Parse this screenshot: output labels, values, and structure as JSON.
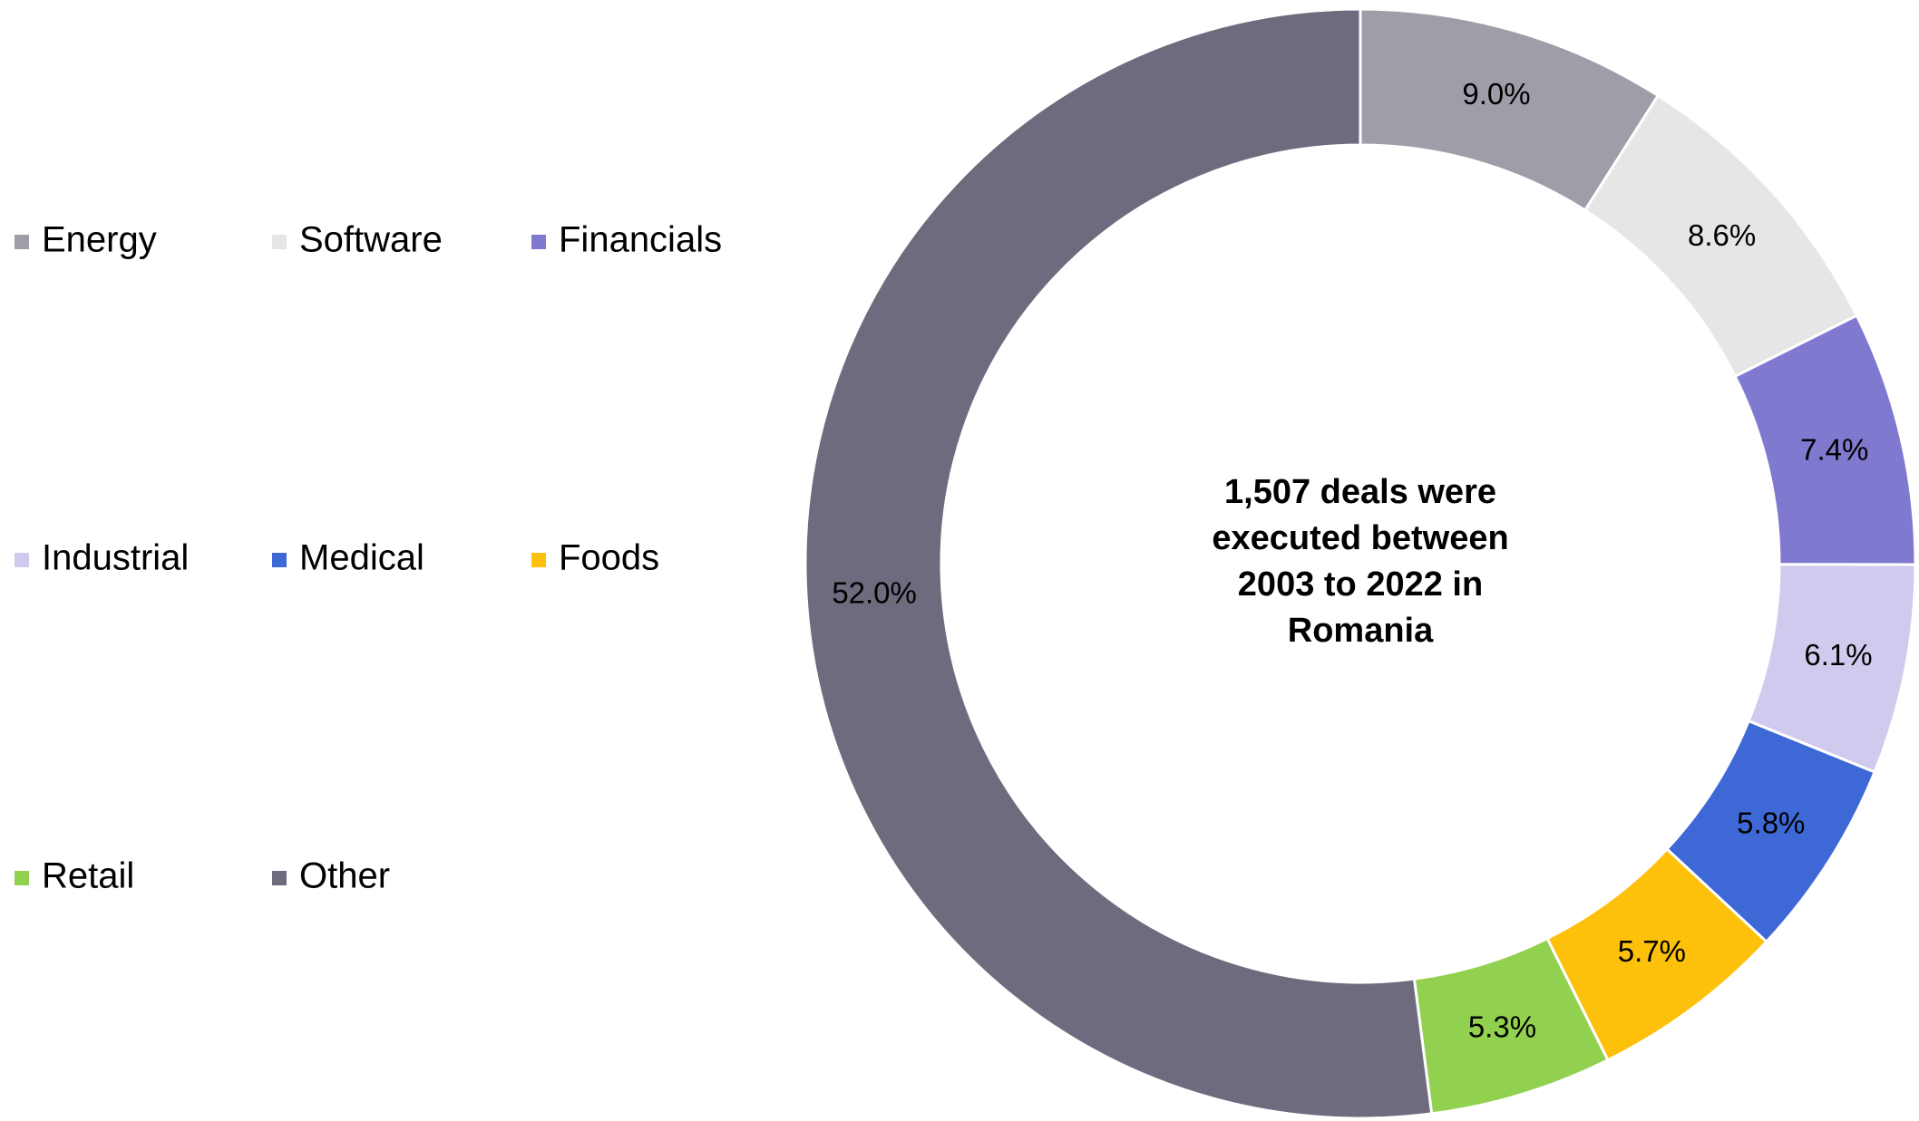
{
  "chart_data": {
    "type": "donut",
    "center_text": [
      "1,507 deals were",
      "executed between",
      "2003 to 2022 in",
      "Romania"
    ],
    "categories": [
      "Energy",
      "Software",
      "Financials",
      "Industrial",
      "Medical",
      "Foods",
      "Retail",
      "Other"
    ],
    "values": [
      9.0,
      8.6,
      7.4,
      6.1,
      5.8,
      5.7,
      5.3,
      52.0
    ],
    "value_labels": [
      "9.0%",
      "8.6%",
      "7.4%",
      "6.1%",
      "5.8%",
      "5.7%",
      "5.3%",
      "52.0%"
    ],
    "colors": [
      "#a09da8",
      "#e6e6e6",
      "#8079d0",
      "#d0cbee",
      "#3d68d6",
      "#fdc00b",
      "#92d050",
      "#6f6b7e"
    ],
    "legend": "left"
  }
}
